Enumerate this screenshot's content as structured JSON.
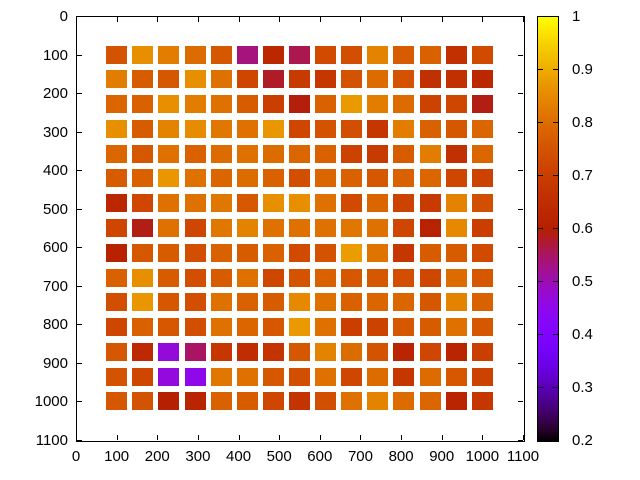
{
  "chart_data": {
    "type": "heatmap",
    "title": "",
    "xlabel": "",
    "ylabel": "",
    "x_range": [
      0,
      1100
    ],
    "y_range": [
      0,
      1100
    ],
    "y_inverted": true,
    "grid": {
      "first": 100,
      "last": 1000,
      "count": 15
    },
    "x_tick_labels": [
      "0",
      "100",
      "200",
      "300",
      "400",
      "500",
      "600",
      "700",
      "800",
      "900",
      "1000",
      "1100"
    ],
    "y_tick_labels": [
      "0",
      "100",
      "200",
      "300",
      "400",
      "500",
      "600",
      "700",
      "800",
      "900",
      "1000",
      "1100"
    ],
    "colorbar": {
      "min": 0.2,
      "max": 1.0,
      "tick_labels_top_to_bottom": [
        "1",
        "0.9",
        "0.8",
        "0.7",
        "0.6",
        "0.5",
        "0.4",
        "0.3",
        "0.2"
      ],
      "palette": "gnuplot pm3d rgbformulae 7,5,15 (black-purple-violet-red-orange-yellow)"
    },
    "values": [
      [
        0.75,
        0.86,
        0.83,
        0.8,
        0.76,
        0.535,
        0.63,
        0.56,
        0.73,
        0.74,
        0.84,
        0.77,
        0.78,
        0.66,
        0.73
      ],
      [
        0.83,
        0.77,
        0.76,
        0.86,
        0.81,
        0.72,
        0.58,
        0.69,
        0.68,
        0.75,
        0.8,
        0.75,
        0.66,
        0.66,
        0.63
      ],
      [
        0.79,
        0.78,
        0.86,
        0.83,
        0.81,
        0.77,
        0.7,
        0.595,
        0.78,
        0.875,
        0.83,
        0.8,
        0.71,
        0.72,
        0.59
      ],
      [
        0.86,
        0.77,
        0.84,
        0.855,
        0.82,
        0.81,
        0.87,
        0.72,
        0.75,
        0.74,
        0.68,
        0.83,
        0.78,
        0.76,
        0.79
      ],
      [
        0.79,
        0.76,
        0.81,
        0.78,
        0.8,
        0.81,
        0.8,
        0.79,
        0.78,
        0.71,
        0.69,
        0.77,
        0.83,
        0.66,
        0.79
      ],
      [
        0.77,
        0.78,
        0.87,
        0.81,
        0.79,
        0.8,
        0.78,
        0.74,
        0.79,
        0.78,
        0.76,
        0.78,
        0.79,
        0.72,
        0.71
      ],
      [
        0.63,
        0.72,
        0.81,
        0.81,
        0.82,
        0.76,
        0.86,
        0.86,
        0.81,
        0.73,
        0.79,
        0.71,
        0.69,
        0.84,
        0.74
      ],
      [
        0.72,
        0.59,
        0.81,
        0.72,
        0.82,
        0.84,
        0.81,
        0.81,
        0.81,
        0.82,
        0.81,
        0.72,
        0.61,
        0.85,
        0.7
      ],
      [
        0.61,
        0.76,
        0.77,
        0.74,
        0.78,
        0.77,
        0.78,
        0.73,
        0.75,
        0.88,
        0.815,
        0.68,
        0.77,
        0.77,
        0.73
      ],
      [
        0.78,
        0.86,
        0.77,
        0.74,
        0.77,
        0.81,
        0.72,
        0.75,
        0.78,
        0.76,
        0.76,
        0.74,
        0.72,
        0.8,
        0.76
      ],
      [
        0.74,
        0.87,
        0.76,
        0.74,
        0.81,
        0.78,
        0.77,
        0.85,
        0.81,
        0.78,
        0.79,
        0.79,
        0.76,
        0.84,
        0.78
      ],
      [
        0.72,
        0.78,
        0.76,
        0.74,
        0.81,
        0.79,
        0.76,
        0.875,
        0.81,
        0.7,
        0.71,
        0.76,
        0.77,
        0.81,
        0.76
      ],
      [
        0.76,
        0.64,
        0.47,
        0.55,
        0.68,
        0.65,
        0.67,
        0.76,
        0.84,
        0.8,
        0.75,
        0.62,
        0.72,
        0.62,
        0.7
      ],
      [
        0.75,
        0.72,
        0.465,
        0.45,
        0.82,
        0.81,
        0.76,
        0.74,
        0.81,
        0.72,
        0.8,
        0.68,
        0.8,
        0.76,
        0.71
      ],
      [
        0.76,
        0.75,
        0.6,
        0.62,
        0.78,
        0.77,
        0.72,
        0.67,
        0.74,
        0.81,
        0.84,
        0.8,
        0.79,
        0.62,
        0.68
      ]
    ]
  },
  "colors": {
    "background": "#ffffff",
    "border": "#000000",
    "text": "#000000"
  }
}
